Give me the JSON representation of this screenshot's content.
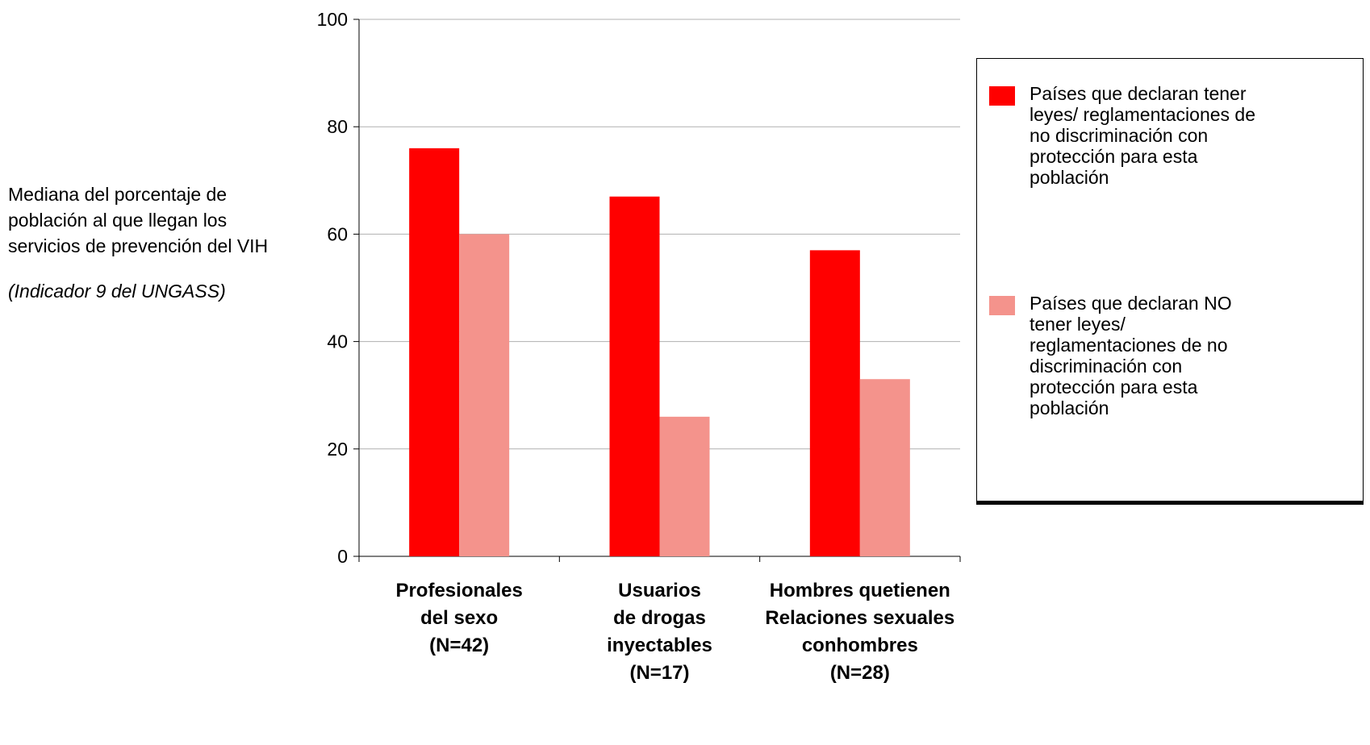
{
  "chart_data": {
    "type": "bar",
    "title": "",
    "xlabel": "",
    "ylabel": "Mediana del porcentaje de población al que llegan los servicios de prevención del VIH",
    "ylabel_note": "(Indicador 9 del UNGASS)",
    "ylim": [
      0,
      100
    ],
    "yticks": [
      "0",
      "20",
      "40",
      "60",
      "80",
      "100"
    ],
    "grid": true,
    "legend_position": "right",
    "categories": [
      [
        "Profesionales",
        "del sexo",
        "(N=42)"
      ],
      [
        "Usuarios",
        "de drogas",
        "inyectables",
        "(N=17)"
      ],
      [
        "Hombres quetienen",
        "Relaciones sexuales",
        "conhombres",
        "(N=28)"
      ]
    ],
    "series": [
      {
        "name": "Países que declaran tener leyes/ reglamentaciones de no discriminación con protección para esta población",
        "values": [
          76,
          67,
          57
        ],
        "color": "#ff0000"
      },
      {
        "name": "Países que declaran NO tener leyes/ reglamentaciones de no discriminación con protección para esta población",
        "values": [
          60,
          26,
          33
        ],
        "color": "#f4938c"
      }
    ]
  }
}
